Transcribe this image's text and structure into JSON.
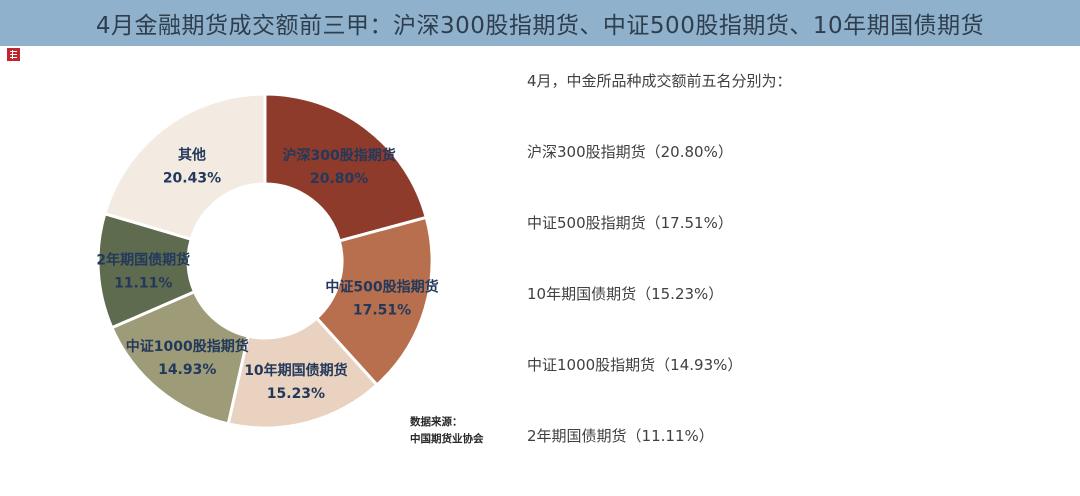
{
  "title": "4月金融期货成交额前三甲：沪深300股指期货、中证500股指期货、10年期国债期货",
  "source": {
    "label": "数据来源：",
    "value": "中国期货业协会"
  },
  "info": {
    "intro": "4月，中金所品种成交额前五名分别为：",
    "items": [
      "沪深300股指期货（20.80%）",
      "中证500股指期货（17.51%）",
      "10年期国债期货（15.23%）",
      "中证1000股指期货（14.93%）",
      "2年期国债期货（11.11%）"
    ]
  },
  "chart_data": {
    "type": "pie",
    "donut": true,
    "title": "",
    "slices": [
      {
        "label": "沪深300股指期货",
        "value": 20.8,
        "value_label": "20.80%",
        "color": "#8e3b2b"
      },
      {
        "label": "中证500股指期货",
        "value": 17.51,
        "value_label": "17.51%",
        "color": "#b86f4d"
      },
      {
        "label": "10年期国债期货",
        "value": 15.23,
        "value_label": "15.23%",
        "color": "#e9d2c0"
      },
      {
        "label": "中证1000股指期货",
        "value": 14.93,
        "value_label": "14.93%",
        "color": "#9d9b78"
      },
      {
        "label": "2年期国债期货",
        "value": 11.11,
        "value_label": "11.11%",
        "color": "#5e6b4f"
      },
      {
        "label": "其他",
        "value": 20.43,
        "value_label": "20.43%",
        "color": "#f3ebe2"
      }
    ]
  }
}
